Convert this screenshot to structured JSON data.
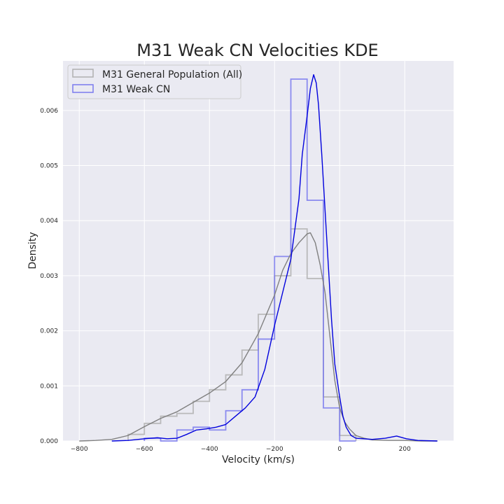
{
  "chart_data": {
    "type": "area",
    "title": "M31 Weak CN Velocities KDE",
    "xlabel": "Velocity (km/s)",
    "ylabel": "Density",
    "xlim": [
      -850,
      350
    ],
    "ylim": [
      0,
      0.0069
    ],
    "xticks": [
      -800,
      -600,
      -400,
      -200,
      0,
      200
    ],
    "yticks": [
      0.0,
      0.001,
      0.002,
      0.003,
      0.004,
      0.005,
      0.006
    ],
    "ytick_labels": [
      "0.000",
      "0.001",
      "0.002",
      "0.003",
      "0.004",
      "0.005",
      "0.006"
    ],
    "grid": true,
    "background": "#eaeaf2",
    "legend_position": "top-left",
    "series": [
      {
        "name": "M31 General Population (All)",
        "color": "#808080",
        "hist_color": "#b0b0b0",
        "hist_bins": [
          {
            "x0": -650,
            "x1": -600,
            "y": 0.00012
          },
          {
            "x0": -600,
            "x1": -550,
            "y": 0.00032
          },
          {
            "x0": -550,
            "x1": -500,
            "y": 0.00045
          },
          {
            "x0": -500,
            "x1": -450,
            "y": 0.0005
          },
          {
            "x0": -450,
            "x1": -400,
            "y": 0.00072
          },
          {
            "x0": -400,
            "x1": -350,
            "y": 0.00093
          },
          {
            "x0": -350,
            "x1": -300,
            "y": 0.0012
          },
          {
            "x0": -300,
            "x1": -250,
            "y": 0.00165
          },
          {
            "x0": -250,
            "x1": -200,
            "y": 0.0023
          },
          {
            "x0": -200,
            "x1": -150,
            "y": 0.003
          },
          {
            "x0": -150,
            "x1": -100,
            "y": 0.00385
          },
          {
            "x0": -100,
            "x1": -50,
            "y": 0.00295
          },
          {
            "x0": -50,
            "x1": 0,
            "y": 0.0008
          },
          {
            "x0": 0,
            "x1": 50,
            "y": 0.0001
          }
        ],
        "kde": [
          [
            -800,
            0.0
          ],
          [
            -750,
            1e-05
          ],
          [
            -700,
            3e-05
          ],
          [
            -650,
            0.0001
          ],
          [
            -600,
            0.00026
          ],
          [
            -550,
            0.00041
          ],
          [
            -500,
            0.00053
          ],
          [
            -450,
            0.0007
          ],
          [
            -400,
            0.00087
          ],
          [
            -350,
            0.00108
          ],
          [
            -300,
            0.00142
          ],
          [
            -250,
            0.00195
          ],
          [
            -200,
            0.00265
          ],
          [
            -175,
            0.0031
          ],
          [
            -150,
            0.0034
          ],
          [
            -125,
            0.0036
          ],
          [
            -100,
            0.00376
          ],
          [
            -90,
            0.00378
          ],
          [
            -75,
            0.0036
          ],
          [
            -60,
            0.0032
          ],
          [
            -45,
            0.0027
          ],
          [
            -30,
            0.0019
          ],
          [
            -15,
            0.0011
          ],
          [
            0,
            0.0006
          ],
          [
            15,
            0.00035
          ],
          [
            30,
            0.00022
          ],
          [
            50,
            0.0001
          ],
          [
            75,
            5e-05
          ],
          [
            100,
            2e-05
          ],
          [
            150,
            1e-05
          ],
          [
            200,
            1e-05
          ],
          [
            250,
            0.0
          ],
          [
            300,
            0.0
          ]
        ]
      },
      {
        "name": "M31 Weak CN",
        "color": "#0000dd",
        "hist_color": "#7a7aee",
        "hist_bins": [
          {
            "x0": -600,
            "x1": -550,
            "y": 5e-05
          },
          {
            "x0": -550,
            "x1": -500,
            "y": 0.0
          },
          {
            "x0": -500,
            "x1": -450,
            "y": 0.0002
          },
          {
            "x0": -450,
            "x1": -400,
            "y": 0.00025
          },
          {
            "x0": -400,
            "x1": -350,
            "y": 0.0002
          },
          {
            "x0": -350,
            "x1": -300,
            "y": 0.00055
          },
          {
            "x0": -300,
            "x1": -250,
            "y": 0.00093
          },
          {
            "x0": -250,
            "x1": -200,
            "y": 0.00185
          },
          {
            "x0": -200,
            "x1": -150,
            "y": 0.00335
          },
          {
            "x0": -150,
            "x1": -100,
            "y": 0.00657
          },
          {
            "x0": -100,
            "x1": -50,
            "y": 0.00437
          },
          {
            "x0": -50,
            "x1": 0,
            "y": 0.0006
          },
          {
            "x0": 0,
            "x1": 50,
            "y": 0.0
          }
        ],
        "kde": [
          [
            -700,
            0.0
          ],
          [
            -650,
            1e-05
          ],
          [
            -600,
            4e-05
          ],
          [
            -560,
            6e-05
          ],
          [
            -530,
            4e-05
          ],
          [
            -500,
            5e-05
          ],
          [
            -470,
            0.00012
          ],
          [
            -440,
            0.0002
          ],
          [
            -410,
            0.00022
          ],
          [
            -380,
            0.00025
          ],
          [
            -350,
            0.0003
          ],
          [
            -320,
            0.00045
          ],
          [
            -290,
            0.0006
          ],
          [
            -260,
            0.0008
          ],
          [
            -230,
            0.0013
          ],
          [
            -200,
            0.0021
          ],
          [
            -175,
            0.0027
          ],
          [
            -150,
            0.0033
          ],
          [
            -125,
            0.0044
          ],
          [
            -115,
            0.0052
          ],
          [
            -100,
            0.0059
          ],
          [
            -90,
            0.0064
          ],
          [
            -80,
            0.00665
          ],
          [
            -72,
            0.0065
          ],
          [
            -65,
            0.0061
          ],
          [
            -55,
            0.0052
          ],
          [
            -45,
            0.0042
          ],
          [
            -35,
            0.0032
          ],
          [
            -25,
            0.0022
          ],
          [
            -15,
            0.0014
          ],
          [
            0,
            0.0008
          ],
          [
            10,
            0.00045
          ],
          [
            20,
            0.00025
          ],
          [
            35,
            0.0001
          ],
          [
            50,
            5e-05
          ],
          [
            100,
            3e-05
          ],
          [
            140,
            5e-05
          ],
          [
            175,
            9e-05
          ],
          [
            205,
            4e-05
          ],
          [
            240,
            1e-05
          ],
          [
            300,
            0.0
          ]
        ]
      }
    ]
  }
}
